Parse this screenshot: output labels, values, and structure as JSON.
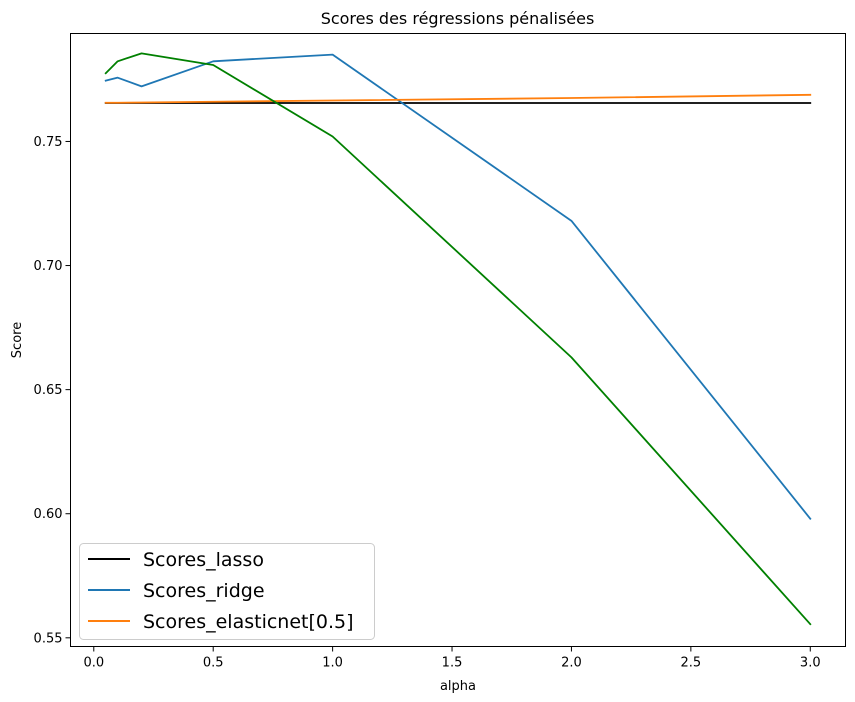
{
  "chart_data": {
    "type": "line",
    "title": "Scores des régressions pénalisées",
    "xlabel": "alpha",
    "ylabel": "Score",
    "xlim": [
      -0.0975,
      3.1475
    ],
    "ylim": [
      0.5465,
      0.7935
    ],
    "x_ticks": [
      0.0,
      0.5,
      1.0,
      1.5,
      2.0,
      2.5,
      3.0
    ],
    "x_tick_labels": [
      "0.0",
      "0.5",
      "1.0",
      "1.5",
      "2.0",
      "2.5",
      "3.0"
    ],
    "y_ticks": [
      0.55,
      0.6,
      0.65,
      0.7,
      0.75
    ],
    "y_tick_labels": [
      "0.55",
      "0.60",
      "0.65",
      "0.70",
      "0.75"
    ],
    "grid": false,
    "legend_position": "lower-left",
    "series": [
      {
        "name": "Scores_lasso",
        "color": "#000000",
        "in_legend": true,
        "x": [
          0.05,
          0.1,
          0.2,
          0.5,
          1.0,
          2.0,
          3.0
        ],
        "y": [
          0.7655,
          0.7655,
          0.7655,
          0.7655,
          0.7655,
          0.7655,
          0.7655
        ]
      },
      {
        "name": "Scores_ridge",
        "color": "#1f77b4",
        "in_legend": true,
        "x": [
          0.05,
          0.1,
          0.2,
          0.5,
          1.0,
          2.0,
          3.0
        ],
        "y": [
          0.7745,
          0.7757,
          0.7722,
          0.7823,
          0.785,
          0.718,
          0.598
        ]
      },
      {
        "name": "Scores_elasticnet[0.5]",
        "color": "#ff7f0e",
        "in_legend": true,
        "x": [
          0.05,
          0.1,
          0.2,
          0.5,
          1.0,
          2.0,
          3.0
        ],
        "y": [
          0.7656,
          0.7656,
          0.7657,
          0.766,
          0.7665,
          0.7675,
          0.7688
        ]
      },
      {
        "name": "",
        "color": "#008000",
        "in_legend": false,
        "x": [
          0.05,
          0.1,
          0.2,
          0.5,
          1.0,
          2.0,
          3.0
        ],
        "y": [
          0.7775,
          0.7823,
          0.7855,
          0.7808,
          0.752,
          0.663,
          0.5555
        ]
      }
    ]
  }
}
